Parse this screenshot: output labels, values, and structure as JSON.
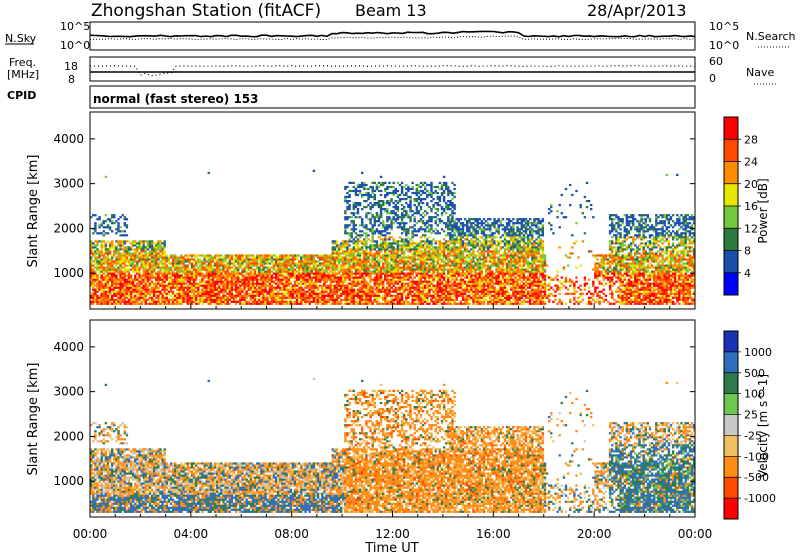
{
  "header": {
    "title": "Zhongshan Station (fitACF)",
    "beam": "Beam 13",
    "date": "28/Apr/2013"
  },
  "strips": {
    "nsky_label": "N.Sky",
    "nsky_ticks": [
      "10^5",
      "10^0"
    ],
    "nsearch_label": "N.Search",
    "nsearch_ticks": [
      "10^5",
      "10^0"
    ],
    "freq_label_1": "Freq.",
    "freq_label_2": "[MHz]",
    "freq_ticks": [
      "18",
      "8"
    ],
    "nave_label": "Nave",
    "nave_ticks": [
      "60",
      "0"
    ],
    "cpid_label": "CPID",
    "cpid_value": "normal (fast stereo) 153"
  },
  "chart_data": [
    {
      "type": "heatmap",
      "name": "power",
      "ylabel": "Slant Range [km]",
      "yticks": [
        "1000",
        "2000",
        "3000",
        "4000"
      ],
      "ylim": [
        200,
        4600
      ],
      "xlim_hours": [
        0,
        24
      ],
      "colorbar_label": "Power [dB]",
      "colorbar_ticks": [
        "28",
        "24",
        "20",
        "16",
        "12",
        "8",
        "4"
      ],
      "colorbar_colors": [
        "#ff0000",
        "#ff4a00",
        "#ff8c00",
        "#e6e600",
        "#73c83c",
        "#2d7a41",
        "#1a4fb0",
        "#0000ff"
      ]
    },
    {
      "type": "heatmap",
      "name": "velocity",
      "xlabel": "Time UT",
      "ylabel": "Slant Range [km]",
      "xticks": [
        "00:00",
        "04:00",
        "08:00",
        "12:00",
        "16:00",
        "20:00",
        "00:00"
      ],
      "yticks": [
        "1000",
        "2000",
        "3000",
        "4000"
      ],
      "ylim": [
        200,
        4600
      ],
      "xlim_hours": [
        0,
        24
      ],
      "colorbar_label": "Velocity [m s^-1]",
      "colorbar_ticks": [
        "1000",
        "500",
        "100",
        "25",
        "-25",
        "-100",
        "-500",
        "-1000"
      ],
      "colorbar_colors": [
        "#1a32b4",
        "#2e6fbd",
        "#2f7a4a",
        "#6cc84c",
        "#c8c8c8",
        "#f0c060",
        "#ff8c14",
        "#ff4a00",
        "#ff0000"
      ]
    }
  ]
}
